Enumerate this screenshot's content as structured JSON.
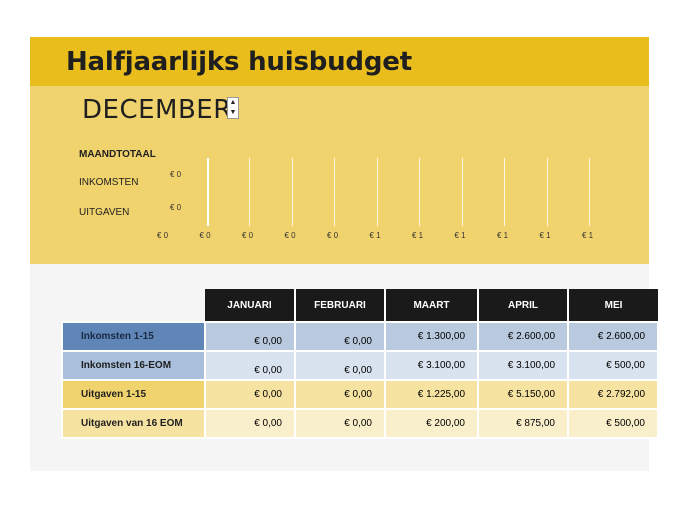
{
  "title": "Halfjaarlijks huisbudget",
  "month_selector": {
    "value": "DECEMBER",
    "up": "▲",
    "down": "▼"
  },
  "chart": {
    "header": "MAANDTOTAAL",
    "rows": [
      {
        "label": "INKOMSTEN",
        "value": "€ 0"
      },
      {
        "label": "UITGAVEN",
        "value": "€ 0"
      }
    ],
    "x_ticks": [
      "€ 0",
      "€ 0",
      "€ 0",
      "€ 0",
      "€ 0",
      "€ 1",
      "€ 1",
      "€ 1",
      "€ 1",
      "€ 1",
      "€ 1"
    ]
  },
  "table": {
    "columns": [
      "JANUARI",
      "FEBRUARI",
      "MAART",
      "APRIL",
      "MEI"
    ],
    "rows": [
      {
        "label": "Inkomsten 1-15",
        "values": [
          "€ 0,00",
          "€ 0,00",
          "€ 1.300,00",
          "€ 2.600,00",
          "€ 2.600,00"
        ]
      },
      {
        "label": "Inkomsten 16-EOM",
        "values": [
          "€ 0,00",
          "€ 0,00",
          "€ 3.100,00",
          "€ 3.100,00",
          "€ 500,00"
        ]
      },
      {
        "label": "Uitgaven 1-15",
        "values": [
          "€ 0,00",
          "€ 0,00",
          "€ 1.225,00",
          "€ 5.150,00",
          "€ 2.792,00"
        ]
      },
      {
        "label": "Uitgaven van 16 EOM",
        "values": [
          "€ 0,00",
          "€ 0,00",
          "€ 200,00",
          "€ 875,00",
          "€ 500,00"
        ]
      }
    ]
  }
}
